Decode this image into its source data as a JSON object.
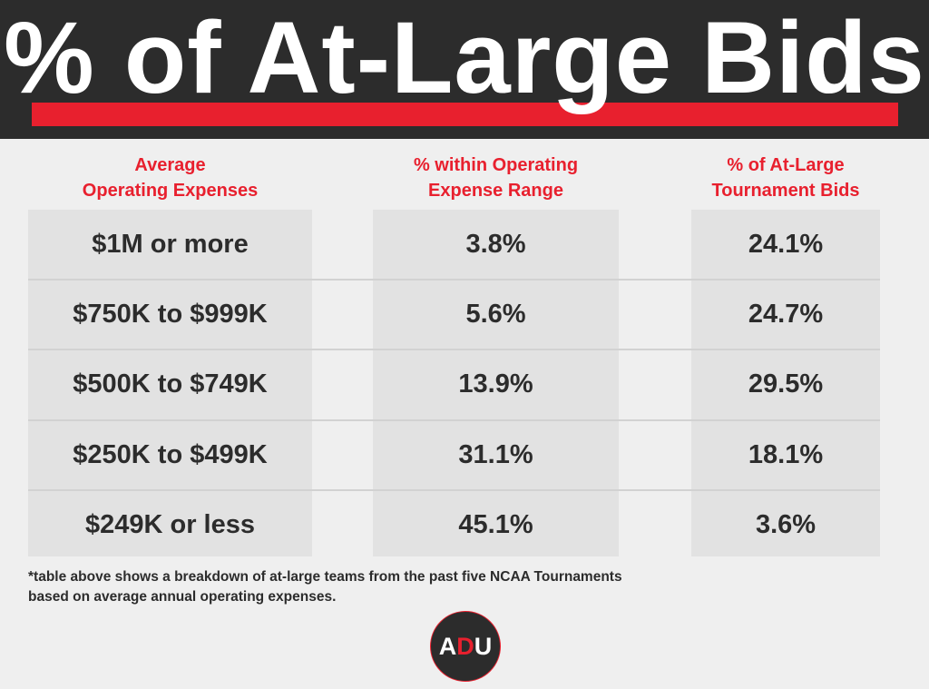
{
  "title": "% of At-Large Bids",
  "colors": {
    "accent": "#e8202e",
    "dark": "#2c2c2c",
    "background": "#efefef",
    "cell": "#e2e2e2"
  },
  "chart_data": {
    "type": "table",
    "columns": [
      {
        "line1": "Average",
        "line2": "Operating Expenses"
      },
      {
        "line1": "% within Operating",
        "line2": "Expense Range"
      },
      {
        "line1": "% of At-Large",
        "line2": "Tournament Bids"
      }
    ],
    "rows": [
      [
        "$1M or more",
        "3.8%",
        "24.1%"
      ],
      [
        "$750K to $999K",
        "5.6%",
        "24.7%"
      ],
      [
        "$500K to $749K",
        "13.9%",
        "29.5%"
      ],
      [
        "$250K to $499K",
        "31.1%",
        "18.1%"
      ],
      [
        "$249K or less",
        "45.1%",
        "3.6%"
      ]
    ]
  },
  "footnote": {
    "line1": "*table above shows a breakdown of at-large teams from the past five NCAA Tournaments",
    "line2": "based on average annual operating expenses."
  },
  "logo": {
    "text_a": "A",
    "text_d": "D",
    "text_u": "U"
  }
}
